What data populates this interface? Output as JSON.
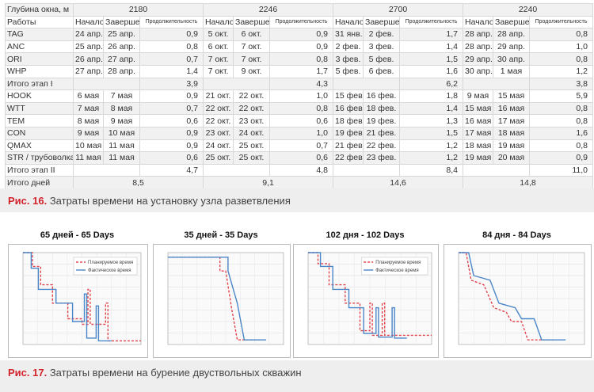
{
  "table": {
    "header_depth_label": "Глубина окна, м",
    "depths": [
      "2180",
      "2246",
      "2700",
      "2240"
    ],
    "works_label": "Работы",
    "sub_headers": [
      "Начало",
      "Завершение",
      "Продолжительность"
    ],
    "rows": [
      {
        "label": "TAG",
        "cells": [
          [
            "24 апр.",
            "25 апр.",
            "0,9"
          ],
          [
            "5 окт.",
            "6 окт.",
            "0,9"
          ],
          [
            "31 янв.",
            "2 фев.",
            "1,7"
          ],
          [
            "28 апр.",
            "28 апр.",
            "0,8"
          ]
        ]
      },
      {
        "label": "ANC",
        "cells": [
          [
            "25 апр.",
            "26 апр.",
            "0,8"
          ],
          [
            "6 окт.",
            "7 окт.",
            "0,9"
          ],
          [
            "2 фев.",
            "3 фев.",
            "1,4"
          ],
          [
            "28 апр.",
            "29 апр.",
            "1,0"
          ]
        ]
      },
      {
        "label": "ORI",
        "cells": [
          [
            "26 апр.",
            "27 апр.",
            "0,7"
          ],
          [
            "7 окт.",
            "7 окт.",
            "0,8"
          ],
          [
            "3 фев.",
            "5 фев.",
            "1,5"
          ],
          [
            "29 апр.",
            "30 апр.",
            "0,8"
          ]
        ]
      },
      {
        "label": "WHP",
        "cells": [
          [
            "27 апр.",
            "28 апр.",
            "1,4"
          ],
          [
            "7 окт.",
            "9 окт.",
            "1,7"
          ],
          [
            "5 фев.",
            "6 фев.",
            "1,6"
          ],
          [
            "30 апр.",
            "1 мая",
            "1,2"
          ]
        ]
      },
      {
        "label": "Итого этап I",
        "totals": [
          "3,9",
          "4,3",
          "6,2",
          "3,8"
        ]
      },
      {
        "label": "HOOK",
        "cells": [
          [
            "6 мая",
            "7 мая",
            "0,9"
          ],
          [
            "21 окт.",
            "22 окт.",
            "1,0"
          ],
          [
            "15 фев.",
            "16 фев.",
            "1,8"
          ],
          [
            "9 мая",
            "15 мая",
            "5,9"
          ]
        ]
      },
      {
        "label": "WTT",
        "cells": [
          [
            "7 мая",
            "8 мая",
            "0,7"
          ],
          [
            "22 окт.",
            "22 окт.",
            "0,8"
          ],
          [
            "16 фев.",
            "18 фев.",
            "1,4"
          ],
          [
            "15 мая",
            "16 мая",
            "0,8"
          ]
        ]
      },
      {
        "label": "TEM",
        "cells": [
          [
            "8 мая",
            "9 мая",
            "0,6"
          ],
          [
            "22 окт.",
            "23 окт.",
            "0,6"
          ],
          [
            "18 фев.",
            "19 фев.",
            "1,3"
          ],
          [
            "16 мая",
            "17 мая",
            "0,8"
          ]
        ]
      },
      {
        "label": "CON",
        "cells": [
          [
            "9 мая",
            "10 мая",
            "0,9"
          ],
          [
            "23 окт.",
            "24 окт.",
            "1,0"
          ],
          [
            "19 фев.",
            "21 фев.",
            "1,5"
          ],
          [
            "17 мая",
            "18 мая",
            "1,6"
          ]
        ]
      },
      {
        "label": "QMAX",
        "cells": [
          [
            "10 мая",
            "11 мая",
            "0,9"
          ],
          [
            "24 окт.",
            "25 окт.",
            "0,7"
          ],
          [
            "21 фев.",
            "22 фев.",
            "1,2"
          ],
          [
            "18 мая",
            "19 мая",
            "0,8"
          ]
        ]
      },
      {
        "label": "STR / трубоволка",
        "cells": [
          [
            "11 мая",
            "11 мая",
            "0,6"
          ],
          [
            "25 окт.",
            "25 окт.",
            "0,6"
          ],
          [
            "22 фев.",
            "23 фев.",
            "1,2"
          ],
          [
            "19 мая",
            "20 мая",
            "0,9"
          ]
        ]
      },
      {
        "label": "Итого этап II",
        "totals": [
          "4,7",
          "4,8",
          "8,4",
          "11,0"
        ]
      },
      {
        "label": "Итого дней",
        "grand": [
          "8,5",
          "9,1",
          "14,6",
          "14,8"
        ]
      }
    ]
  },
  "caption16": {
    "num": "Рис. 16.",
    "text": "Затраты времени на установку узла разветвления"
  },
  "caption17": {
    "num": "Рис. 17.",
    "text": "Затраты времени на бурение двуствольных скважин"
  },
  "charts": [
    {
      "title": "65 дней - 65 Days",
      "legend": [
        "Планируемое время",
        "Фактическое время"
      ]
    },
    {
      "title": "35 дней - 35 Days",
      "legend": []
    },
    {
      "title": "102 дня - 102 Days",
      "legend": [
        "Планируемое время",
        "Фактическое время"
      ]
    },
    {
      "title": "84 дня - 84 Days",
      "legend": []
    }
  ],
  "colors": {
    "planned": "#e0454d",
    "actual": "#4a86c8",
    "accent": "#d2232a"
  }
}
